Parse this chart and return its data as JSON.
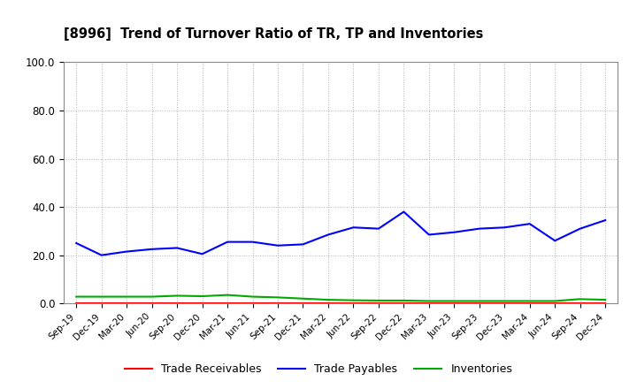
{
  "title": "[8996]  Trend of Turnover Ratio of TR, TP and Inventories",
  "x_labels": [
    "Sep-19",
    "Dec-19",
    "Mar-20",
    "Jun-20",
    "Sep-20",
    "Dec-20",
    "Mar-21",
    "Jun-21",
    "Sep-21",
    "Dec-21",
    "Mar-22",
    "Jun-22",
    "Sep-22",
    "Dec-22",
    "Mar-23",
    "Jun-23",
    "Sep-23",
    "Dec-23",
    "Mar-24",
    "Jun-24",
    "Sep-24",
    "Dec-24"
  ],
  "trade_receivables": [
    0.0,
    0.0,
    0.0,
    0.0,
    0.0,
    0.0,
    0.0,
    0.0,
    0.0,
    0.0,
    0.0,
    0.0,
    0.0,
    0.0,
    0.0,
    0.0,
    0.0,
    0.0,
    0.0,
    0.0,
    0.0,
    0.0
  ],
  "trade_payables": [
    25.0,
    20.0,
    21.5,
    22.5,
    23.0,
    20.5,
    25.5,
    25.5,
    24.0,
    24.5,
    28.5,
    31.5,
    31.0,
    38.0,
    28.5,
    29.5,
    31.0,
    31.5,
    33.0,
    26.0,
    31.0,
    34.5
  ],
  "inventories": [
    2.8,
    2.8,
    2.8,
    2.8,
    3.2,
    3.0,
    3.5,
    2.8,
    2.5,
    2.0,
    1.5,
    1.3,
    1.2,
    1.2,
    1.0,
    1.0,
    1.0,
    1.0,
    1.0,
    1.0,
    1.8,
    1.5
  ],
  "tr_color": "#ff0000",
  "tp_color": "#0000ff",
  "inv_color": "#00aa00",
  "ylim": [
    0,
    100
  ],
  "yticks": [
    0.0,
    20.0,
    40.0,
    60.0,
    80.0,
    100.0
  ],
  "background_color": "#ffffff",
  "grid_color": "#aaaaaa",
  "legend_labels": [
    "Trade Receivables",
    "Trade Payables",
    "Inventories"
  ]
}
